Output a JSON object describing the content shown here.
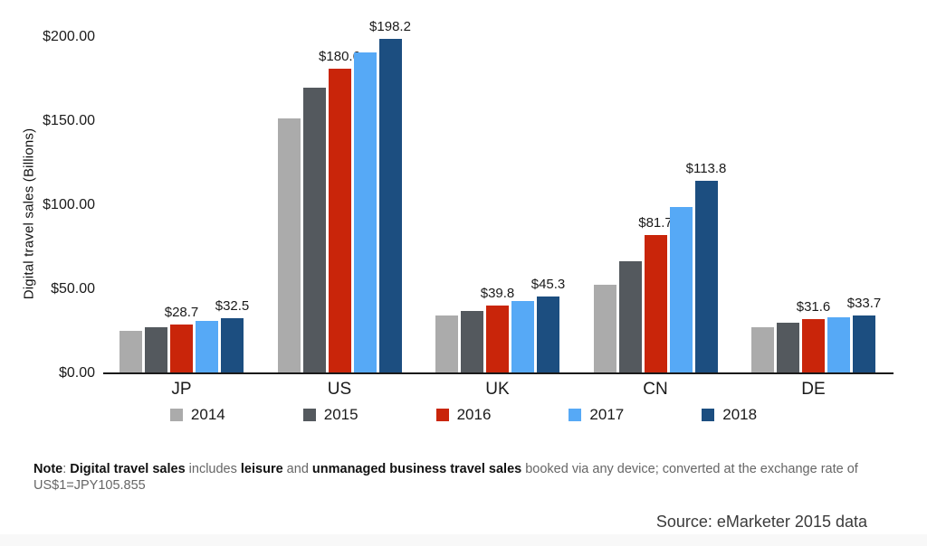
{
  "chart_data": {
    "type": "bar",
    "title": "",
    "xlabel": "",
    "ylabel": "Digital travel sales (Billions)",
    "ylim": [
      0,
      210
    ],
    "grid": false,
    "legend_position": "bottom",
    "categories": [
      "JP",
      "US",
      "UK",
      "CN",
      "DE"
    ],
    "yticks": [
      {
        "label": "$0.00",
        "value": 0
      },
      {
        "label": "$50.00",
        "value": 50
      },
      {
        "label": "$100.00",
        "value": 100
      },
      {
        "label": "$150.00",
        "value": 150
      },
      {
        "label": "$200.00",
        "value": 200
      }
    ],
    "series": [
      {
        "name": "2014",
        "color": "#ababab",
        "values": [
          24.8,
          151.0,
          34.0,
          51.9,
          26.9
        ],
        "bar_labels": null
      },
      {
        "name": "2015",
        "color": "#54595e",
        "values": [
          27.0,
          169.5,
          36.7,
          66.3,
          29.4
        ],
        "bar_labels": null
      },
      {
        "name": "2016",
        "color": "#c9250a",
        "values": [
          28.7,
          180.6,
          39.8,
          81.7,
          31.6
        ],
        "bar_labels": [
          "$28.7",
          "$180.6",
          "$39.8",
          "$81.7",
          "$31.6"
        ]
      },
      {
        "name": "2017",
        "color": "#56a9f6",
        "values": [
          30.5,
          190.4,
          42.6,
          98.3,
          32.8
        ],
        "bar_labels": null
      },
      {
        "name": "2018",
        "color": "#1c4e80",
        "values": [
          32.5,
          198.2,
          45.3,
          113.8,
          33.7
        ],
        "bar_labels": [
          "$32.5",
          "$198.2",
          "$45.3",
          "$113.8",
          "$33.7"
        ]
      }
    ]
  },
  "note": {
    "segments": [
      {
        "text": "Note",
        "bold": true
      },
      {
        "text": ": ",
        "bold": false
      },
      {
        "text": "Digital travel sales",
        "bold": true
      },
      {
        "text": " includes ",
        "bold": false
      },
      {
        "text": "leisure",
        "bold": true
      },
      {
        "text": " and ",
        "bold": false
      },
      {
        "text": "unmanaged business travel sales",
        "bold": true
      },
      {
        "text": " booked via any device; converted at the exchange rate of US$1=JPY105.855",
        "bold": false
      }
    ]
  },
  "source": {
    "text": "Source: eMarketer 2015 data"
  }
}
